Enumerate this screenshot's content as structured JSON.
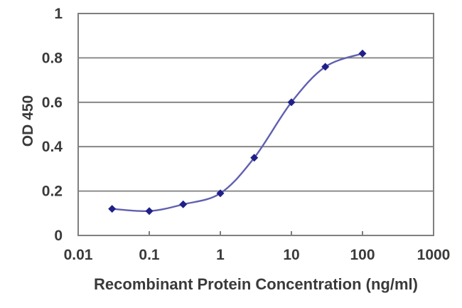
{
  "figure": {
    "description": "ELISA standard curve line chart"
  },
  "chart_data": {
    "type": "line",
    "x": [
      0.03,
      0.1,
      0.3,
      1,
      3,
      10,
      30,
      100
    ],
    "y": [
      0.12,
      0.11,
      0.14,
      0.19,
      0.35,
      0.6,
      0.76,
      0.82
    ],
    "title": "",
    "xlabel": "Recombinant Protein Concentration (ng/ml)",
    "ylabel": "OD 450",
    "x_scale": "log",
    "xlim": [
      0.01,
      1000
    ],
    "ylim": [
      0,
      1
    ],
    "x_tick_labels": [
      "0.01",
      "0.1",
      "1",
      "10",
      "100",
      "1000"
    ],
    "x_tick_values": [
      0.01,
      0.1,
      1,
      10,
      100,
      1000
    ],
    "y_tick_labels": [
      "0",
      "0.2",
      "0.4",
      "0.6",
      "0.8",
      "1"
    ],
    "y_tick_values": [
      0,
      0.2,
      0.4,
      0.6,
      0.8,
      1
    ],
    "grid": "horizontal",
    "legend": "none",
    "marker": "diamond",
    "line_style": "smooth",
    "colors": {
      "line": "#6060b0",
      "marker": "#20208a",
      "grid": "#7f7f7f",
      "plot_border": "#7f7f7f",
      "text": "#3a3a3a",
      "background": "#ffffff"
    }
  }
}
